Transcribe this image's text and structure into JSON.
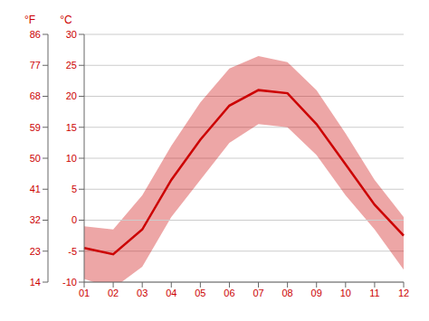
{
  "chart_data": {
    "type": "line",
    "categories": [
      "01",
      "02",
      "03",
      "04",
      "05",
      "06",
      "07",
      "08",
      "09",
      "10",
      "11",
      "12"
    ],
    "values": [
      -4.5,
      -5.5,
      -1.5,
      6.5,
      13.0,
      18.5,
      21.0,
      20.5,
      15.5,
      9.0,
      2.5,
      -2.5
    ],
    "band_low": [
      -9.5,
      -11.0,
      -7.5,
      0.5,
      6.5,
      12.5,
      15.5,
      15.0,
      10.5,
      4.0,
      -1.5,
      -8.0
    ],
    "band_high": [
      -1.0,
      -1.5,
      4.0,
      12.0,
      19.0,
      24.5,
      26.5,
      25.5,
      21.0,
      14.0,
      6.5,
      0.5
    ],
    "color": "#cc0000",
    "ylim": [
      -10,
      30
    ],
    "yticks": [
      -10,
      -5,
      0,
      5,
      10,
      15,
      20,
      25,
      30
    ],
    "y2lim": [
      14,
      86
    ],
    "y2ticks": [
      14,
      23,
      32,
      41,
      50,
      59,
      68,
      77,
      86
    ],
    "ylabel": "°C",
    "y2label": "°F",
    "reference_line": 0,
    "grid": true
  }
}
